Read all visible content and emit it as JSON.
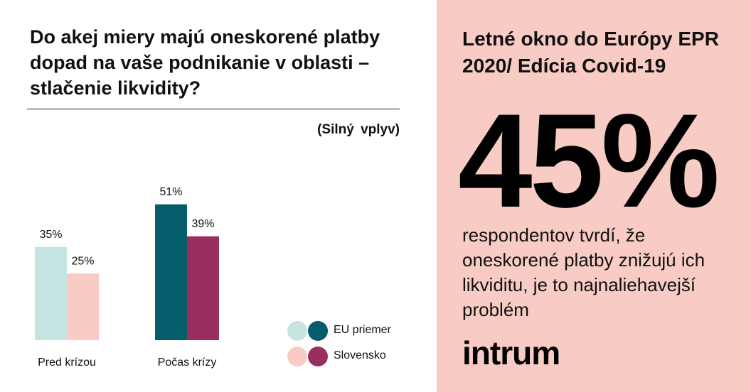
{
  "left_panel": {
    "question": "Do akej miery majú oneskorené platby dopad na vaše podnikanie v oblasti – stlačenie likvidity?",
    "subtitle": "(Silný vplyv)"
  },
  "legend": [
    {
      "label": "EU priemer",
      "light": "#c6e4e2",
      "dark": "#035d6a"
    },
    {
      "label": "Slovensko",
      "light": "#f8ccc5",
      "dark": "#992f5f"
    }
  ],
  "chart_data": {
    "type": "bar",
    "title": "Do akej miery majú oneskorené platby dopad na vaše podnikanie v oblasti – stlačenie likvidity?",
    "subtitle": "(Silný vplyv)",
    "categories": [
      "Pred krízou",
      "Počas krízy"
    ],
    "series": [
      {
        "name": "EU priemer",
        "values": [
          35,
          51
        ],
        "value_labels": [
          "35%",
          "51%"
        ],
        "colors": [
          "#c6e4e2",
          "#035d6a"
        ]
      },
      {
        "name": "Slovensko",
        "values": [
          25,
          39
        ],
        "value_labels": [
          "25%",
          "39%"
        ],
        "colors": [
          "#f8ccc5",
          "#992f5f"
        ]
      }
    ],
    "unit": "%",
    "ylim": [
      0,
      60
    ],
    "grid": false,
    "legend_position": "bottom-right"
  },
  "right_panel": {
    "title": "Letné okno do Európy EPR 2020/ Edícia Covid-19",
    "big_number": "45%",
    "description": "respondentov tvrdí, že oneskorené platby znižujú ich likviditu, je to najnaliehavejší problém",
    "logo_text": "intrum",
    "background": "#f8ccc5"
  }
}
